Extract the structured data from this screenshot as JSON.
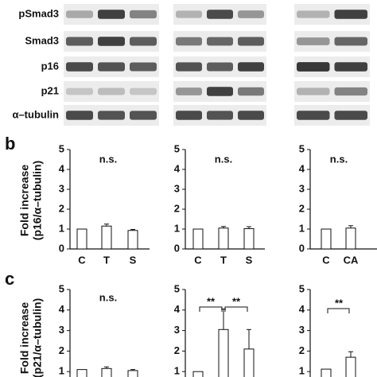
{
  "figure": {
    "blot_labels": [
      "pSmad3",
      "Smad3",
      "p16",
      "p21",
      "α–tubulin"
    ],
    "panel_b": "b",
    "panel_c": "c",
    "ylabel_b": [
      "Fold increase",
      "(p16/α–tubulin)"
    ],
    "ylabel_c": [
      "Fold increase",
      "(p21/α–tubulin)"
    ]
  },
  "chart_data": [
    {
      "type": "bar",
      "categories": [
        "C",
        "T",
        "S"
      ],
      "values": [
        1,
        1.15,
        0.93
      ],
      "errors": [
        0,
        0.1,
        0.05
      ],
      "color": "#ffffff",
      "ylim": [
        0,
        5
      ],
      "yticks": [
        0,
        1,
        2,
        3,
        4,
        5
      ],
      "annotations": [
        {
          "text": "n.s."
        }
      ]
    },
    {
      "type": "bar",
      "categories": [
        "C",
        "T",
        "S"
      ],
      "values": [
        1,
        1.05,
        1.02
      ],
      "errors": [
        0,
        0.08,
        0.1
      ],
      "color": "#ffffff",
      "ylim": [
        0,
        5
      ],
      "yticks": [
        0,
        1,
        2,
        3,
        4,
        5
      ],
      "annotations": [
        {
          "text": "n.s."
        }
      ]
    },
    {
      "type": "bar",
      "categories": [
        "C",
        "CA"
      ],
      "values": [
        1,
        1.05
      ],
      "errors": [
        0,
        0.12
      ],
      "color": "#ffffff",
      "ylim": [
        0,
        5
      ],
      "yticks": [
        0,
        1,
        2,
        3,
        4,
        5
      ],
      "annotations": [
        {
          "text": "n.s."
        }
      ]
    },
    {
      "type": "bar",
      "values": [
        1.1,
        1.15,
        1.05
      ],
      "errors": [
        0,
        0.08,
        0.05
      ],
      "color": "#ffffff",
      "ylim": [
        0,
        5
      ],
      "yticks": [
        1,
        2,
        3,
        4,
        5
      ],
      "annotations": [
        {
          "text": "n.s."
        }
      ]
    },
    {
      "type": "bar",
      "values": [
        1,
        3.05,
        2.1
      ],
      "errors": [
        0,
        1,
        0.95
      ],
      "color": "#ffffff",
      "ylim": [
        0,
        5
      ],
      "yticks": [
        1,
        2,
        3,
        4,
        5
      ],
      "annotations": [
        {
          "text": "**"
        },
        {
          "text": "**"
        }
      ]
    },
    {
      "type": "bar",
      "values": [
        1.12,
        1.7
      ],
      "errors": [
        0,
        0.27
      ],
      "color": "#ffffff",
      "ylim": [
        0,
        5
      ],
      "yticks": [
        1,
        2,
        3,
        4,
        5
      ],
      "annotations": [
        {
          "text": "**"
        }
      ]
    }
  ]
}
